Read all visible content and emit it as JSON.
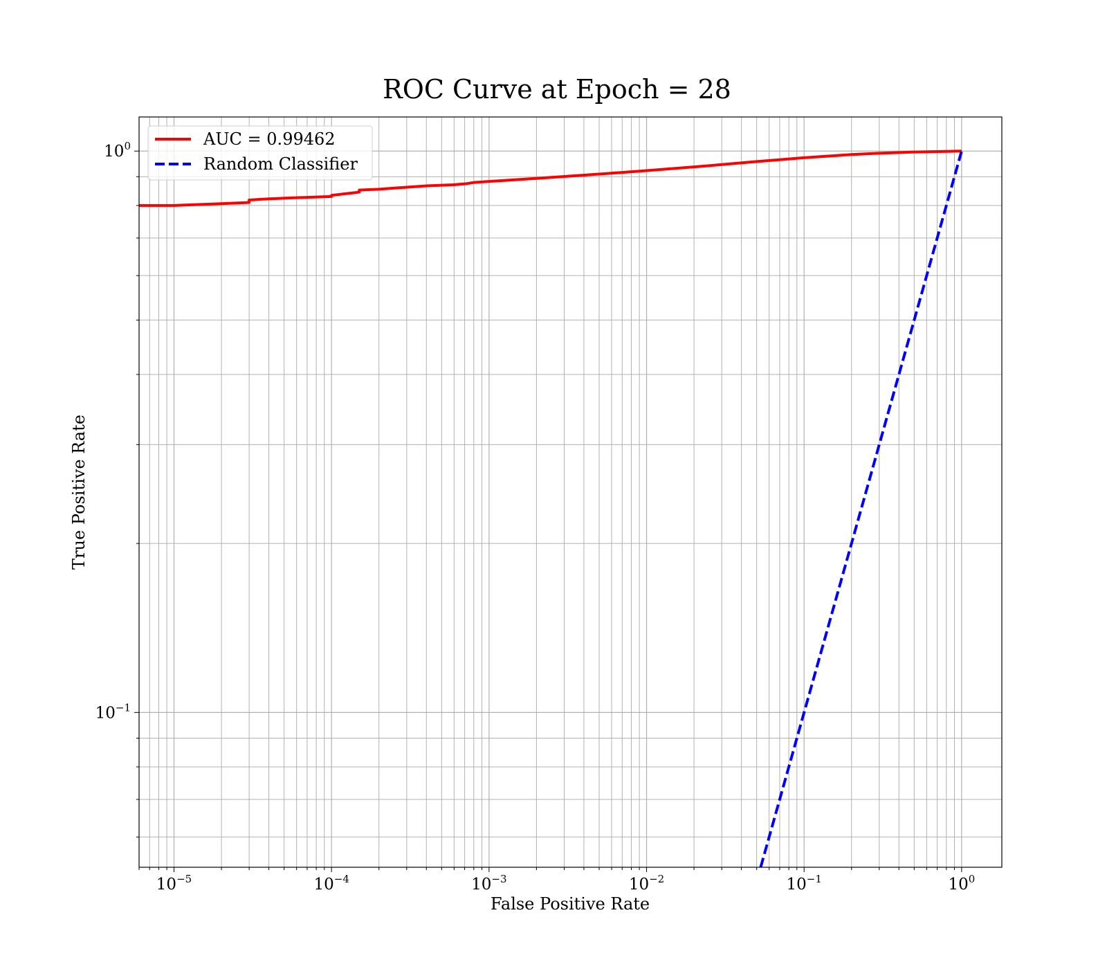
{
  "chart_data": {
    "type": "line",
    "title": "ROC Curve at Epoch = 28",
    "xlabel": "False Positive Rate",
    "ylabel": "True Positive Rate",
    "xscale": "log",
    "yscale": "log",
    "xlim": [
      6e-06,
      1.8
    ],
    "ylim": [
      0.053,
      1.15
    ],
    "grid": true,
    "grid_minor": true,
    "legend_position": "top-left",
    "x_ticks": [
      {
        "base": "10",
        "exp": "−5",
        "value": 1e-05
      },
      {
        "base": "10",
        "exp": "−4",
        "value": 0.0001
      },
      {
        "base": "10",
        "exp": "−3",
        "value": 0.001
      },
      {
        "base": "10",
        "exp": "−2",
        "value": 0.01
      },
      {
        "base": "10",
        "exp": "−1",
        "value": 0.1
      },
      {
        "base": "10",
        "exp": "0",
        "value": 1
      }
    ],
    "y_ticks": [
      {
        "base": "10",
        "exp": "−1",
        "value": 0.1
      },
      {
        "base": "10",
        "exp": "0",
        "value": 1
      }
    ],
    "series": [
      {
        "name": "AUC = 0.99462",
        "color": "#ff0000",
        "style": "solid",
        "x": [
          6e-06,
          1e-05,
          2e-05,
          3e-05,
          3e-05,
          4e-05,
          6e-05,
          0.0001,
          0.0001,
          0.00015,
          0.00015,
          0.0002,
          0.00025,
          0.0003,
          0.0004,
          0.0006,
          0.0007,
          0.0008,
          0.001,
          0.002,
          0.003,
          0.005,
          0.007,
          0.01,
          0.02,
          0.03,
          0.05,
          0.1,
          0.2,
          0.3,
          0.5,
          1.0
        ],
        "y": [
          0.8,
          0.8,
          0.806,
          0.81,
          0.818,
          0.822,
          0.826,
          0.83,
          0.834,
          0.845,
          0.852,
          0.855,
          0.859,
          0.862,
          0.867,
          0.871,
          0.874,
          0.879,
          0.883,
          0.894,
          0.901,
          0.91,
          0.916,
          0.923,
          0.937,
          0.946,
          0.958,
          0.973,
          0.986,
          0.991,
          0.996,
          1.0
        ]
      },
      {
        "name": "Random Classifier",
        "color": "#0000ff",
        "style": "dashed",
        "x": [
          0.053,
          1.0
        ],
        "y": [
          0.053,
          1.0
        ]
      }
    ]
  }
}
